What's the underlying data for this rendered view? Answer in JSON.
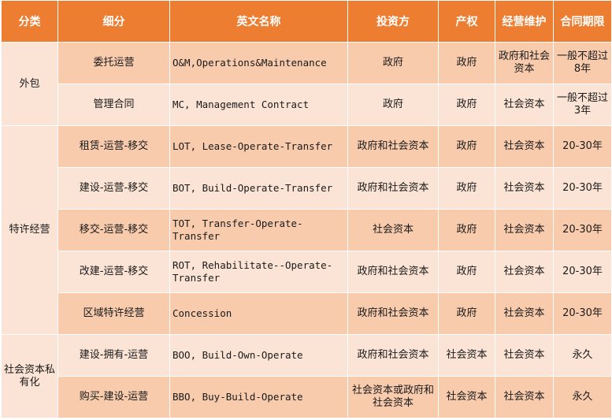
{
  "headers": [
    "分类",
    "细分",
    "英文名称",
    "投资方",
    "产权",
    "经营维护",
    "合同期限"
  ],
  "groups": [
    {
      "category": "外包",
      "rows": [
        {
          "sub": "委托运营",
          "en": "O&M,Operations&Maintenance",
          "investor": "政府",
          "property": "政府",
          "operation": "政府和社会资本",
          "term": "一般不超过8年"
        },
        {
          "sub": "管理合同",
          "en": "MC, Management Contract",
          "investor": "政府",
          "property": "政府",
          "operation": "社会资本",
          "term": "一般不超过3年"
        }
      ]
    },
    {
      "category": "特许经营",
      "rows": [
        {
          "sub": "租赁-运营-移交",
          "en": "LOT, Lease-Operate-Transfer",
          "investor": "政府和社会资本",
          "property": "政府",
          "operation": "社会资本",
          "term": "20-30年"
        },
        {
          "sub": "建设-运营-移交",
          "en": "BOT, Build-Operate-Transfer",
          "investor": "政府和社会资本",
          "property": "政府",
          "operation": "社会资本",
          "term": "20-30年"
        },
        {
          "sub": "移交-运营-移交",
          "en": "TOT, Transfer-Operate-Transfer",
          "investor": "社会资本",
          "property": "政府",
          "operation": "社会资本",
          "term": "20-30年"
        },
        {
          "sub": "改建-运营-移交",
          "en": "ROT, Rehabilitate--Operate-Transfer",
          "investor": "政府和社会资本",
          "property": "政府",
          "operation": "社会资本",
          "term": "20-30年"
        },
        {
          "sub": "区域特许经营",
          "en": "Concession",
          "investor": "政府和社会资本",
          "property": "政府",
          "operation": "社会资本",
          "term": "20-30年"
        }
      ]
    },
    {
      "category": "社会资本私有化",
      "rows": [
        {
          "sub": "建设-拥有-运营",
          "en": "BOO, Build-Own-Operate",
          "investor": "政府和社会资本",
          "property": "社会资本",
          "operation": "社会资本",
          "term": "永久"
        },
        {
          "sub": "购买-建设-运营",
          "en": "BBO, Buy-Build-Operate",
          "investor": "社会资本或政府和社会资本",
          "property": "社会资本",
          "operation": "社会资本",
          "term": "永久"
        }
      ]
    }
  ]
}
